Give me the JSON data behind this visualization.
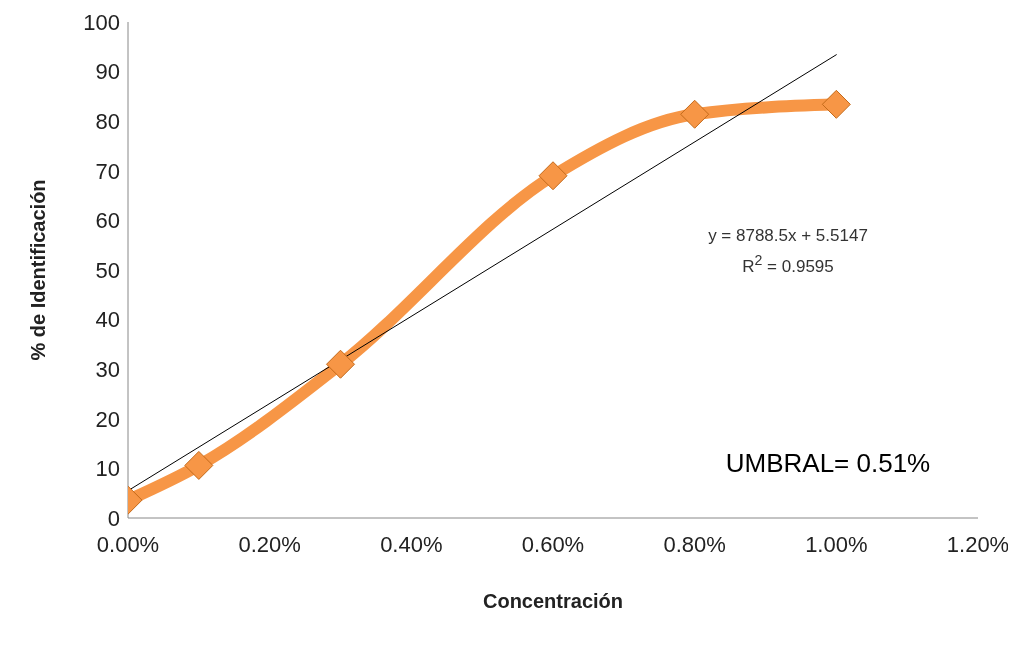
{
  "chart_data": {
    "type": "line",
    "xlabel": "Concentración",
    "ylabel": "% de Identificación",
    "xlim": [
      0,
      1.2
    ],
    "xticks": [
      {
        "value": 0,
        "label": "0.00%"
      },
      {
        "value": 0.2,
        "label": "0.20%"
      },
      {
        "value": 0.4,
        "label": "0.40%"
      },
      {
        "value": 0.6,
        "label": "0.60%"
      },
      {
        "value": 0.8,
        "label": "0.80%"
      },
      {
        "value": 1.0,
        "label": "1.00%"
      },
      {
        "value": 1.2,
        "label": "1.20%"
      }
    ],
    "ylim": [
      0,
      100
    ],
    "yticks": [
      0,
      10,
      20,
      30,
      40,
      50,
      60,
      70,
      80,
      90,
      100
    ],
    "marker": "diamond",
    "line_style": "solid",
    "x": [
      0,
      0.1,
      0.3,
      0.6,
      0.8,
      1.0
    ],
    "series": [
      {
        "color": "#f79646",
        "values": [
          3.6,
          10.6,
          31,
          69,
          81.4,
          83.4
        ]
      },
      {
        "type": "line",
        "x": [
          0,
          1.0
        ],
        "color": "#000000",
        "values": [
          5.5,
          93.4
        ],
        "marker": "none"
      }
    ],
    "annotations": [
      "y = 8788.5x + 5.5147",
      "R$^{2}$ = 0.9595",
      "UMBRAL= 0.51%"
    ]
  }
}
